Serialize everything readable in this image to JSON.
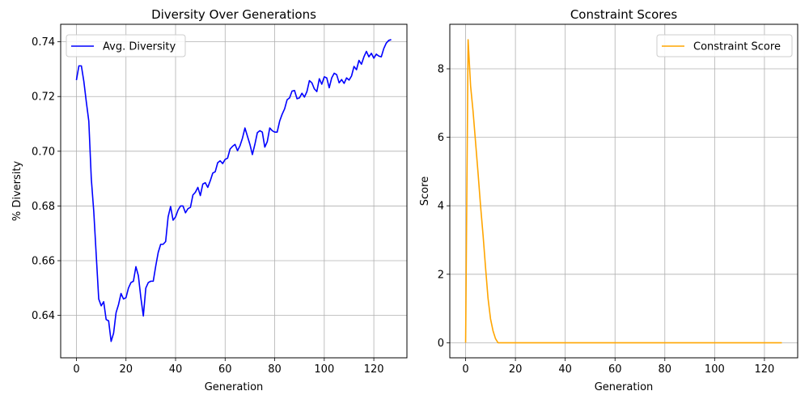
{
  "chart_data": [
    {
      "type": "line",
      "title": "Diversity Over Generations",
      "xlabel": "Generation",
      "ylabel": "% Diversity",
      "xlim": [
        -6.35,
        133.35
      ],
      "ylim": [
        0.6245,
        0.7464
      ],
      "xticks": [
        0,
        20,
        40,
        60,
        80,
        100,
        120
      ],
      "xtick_labels": [
        "0",
        "20",
        "40",
        "60",
        "80",
        "100",
        "120"
      ],
      "yticks": [
        0.64,
        0.66,
        0.68,
        0.7,
        0.72,
        0.74
      ],
      "ytick_labels": [
        "0.64",
        "0.66",
        "0.68",
        "0.70",
        "0.72",
        "0.74"
      ],
      "grid": true,
      "legend_position": "upper-left",
      "series": [
        {
          "name": "Avg. Diversity",
          "color": "#0000ff",
          "points": [
            [
              0,
              0.726
            ],
            [
              1,
              0.7312
            ],
            [
              2,
              0.7312
            ],
            [
              3,
              0.7255
            ],
            [
              4,
              0.718
            ],
            [
              5,
              0.711
            ],
            [
              6,
              0.69
            ],
            [
              7,
              0.678
            ],
            [
              8,
              0.662
            ],
            [
              9,
              0.646
            ],
            [
              10,
              0.6435
            ],
            [
              11,
              0.645
            ],
            [
              12,
              0.6385
            ],
            [
              13,
              0.638
            ],
            [
              14,
              0.6305
            ],
            [
              15,
              0.6335
            ],
            [
              16,
              0.641
            ],
            [
              17,
              0.644
            ],
            [
              18,
              0.648
            ],
            [
              19,
              0.646
            ],
            [
              20,
              0.6465
            ],
            [
              21,
              0.65
            ],
            [
              22,
              0.652
            ],
            [
              23,
              0.6525
            ],
            [
              24,
              0.6578
            ],
            [
              25,
              0.6545
            ],
            [
              26,
              0.6465
            ],
            [
              27,
              0.6398
            ],
            [
              28,
              0.65
            ],
            [
              29,
              0.652
            ],
            [
              30,
              0.6525
            ],
            [
              31,
              0.6525
            ],
            [
              32,
              0.658
            ],
            [
              33,
              0.663
            ],
            [
              34,
              0.666
            ],
            [
              35,
              0.666
            ],
            [
              36,
              0.667
            ],
            [
              37,
              0.676
            ],
            [
              38,
              0.6798
            ],
            [
              39,
              0.6748
            ],
            [
              40,
              0.676
            ],
            [
              41,
              0.6785
            ],
            [
              42,
              0.68
            ],
            [
              43,
              0.68
            ],
            [
              44,
              0.6775
            ],
            [
              45,
              0.679
            ],
            [
              46,
              0.6795
            ],
            [
              47,
              0.684
            ],
            [
              48,
              0.685
            ],
            [
              49,
              0.6868
            ],
            [
              50,
              0.6838
            ],
            [
              51,
              0.688
            ],
            [
              52,
              0.6885
            ],
            [
              53,
              0.6868
            ],
            [
              54,
              0.6892
            ],
            [
              55,
              0.692
            ],
            [
              56,
              0.6925
            ],
            [
              57,
              0.6958
            ],
            [
              58,
              0.6965
            ],
            [
              59,
              0.6955
            ],
            [
              60,
              0.697
            ],
            [
              61,
              0.6975
            ],
            [
              62,
              0.7008
            ],
            [
              63,
              0.7018
            ],
            [
              64,
              0.7025
            ],
            [
              65,
              0.7002
            ],
            [
              66,
              0.702
            ],
            [
              67,
              0.7048
            ],
            [
              68,
              0.7085
            ],
            [
              69,
              0.7055
            ],
            [
              70,
              0.7025
            ],
            [
              71,
              0.6988
            ],
            [
              72,
              0.7025
            ],
            [
              73,
              0.7068
            ],
            [
              74,
              0.7075
            ],
            [
              75,
              0.707
            ],
            [
              76,
              0.7015
            ],
            [
              77,
              0.7035
            ],
            [
              78,
              0.7085
            ],
            [
              79,
              0.7075
            ],
            [
              80,
              0.707
            ],
            [
              81,
              0.707
            ],
            [
              82,
              0.711
            ],
            [
              83,
              0.7135
            ],
            [
              84,
              0.7155
            ],
            [
              85,
              0.7188
            ],
            [
              86,
              0.7195
            ],
            [
              87,
              0.722
            ],
            [
              88,
              0.7222
            ],
            [
              89,
              0.7192
            ],
            [
              90,
              0.7195
            ],
            [
              91,
              0.7212
            ],
            [
              92,
              0.7198
            ],
            [
              93,
              0.7218
            ],
            [
              94,
              0.7258
            ],
            [
              95,
              0.725
            ],
            [
              96,
              0.7228
            ],
            [
              97,
              0.7218
            ],
            [
              98,
              0.7265
            ],
            [
              99,
              0.7245
            ],
            [
              100,
              0.7272
            ],
            [
              101,
              0.7268
            ],
            [
              102,
              0.7232
            ],
            [
              103,
              0.7268
            ],
            [
              104,
              0.7285
            ],
            [
              105,
              0.728
            ],
            [
              106,
              0.725
            ],
            [
              107,
              0.7262
            ],
            [
              108,
              0.7248
            ],
            [
              109,
              0.7268
            ],
            [
              110,
              0.726
            ],
            [
              111,
              0.7275
            ],
            [
              112,
              0.731
            ],
            [
              113,
              0.7298
            ],
            [
              114,
              0.7332
            ],
            [
              115,
              0.7318
            ],
            [
              116,
              0.7345
            ],
            [
              117,
              0.7365
            ],
            [
              118,
              0.7345
            ],
            [
              119,
              0.7358
            ],
            [
              120,
              0.734
            ],
            [
              121,
              0.7355
            ],
            [
              122,
              0.7348
            ],
            [
              123,
              0.7345
            ],
            [
              124,
              0.7375
            ],
            [
              125,
              0.7395
            ],
            [
              126,
              0.7405
            ],
            [
              127,
              0.7408
            ]
          ]
        }
      ]
    },
    {
      "type": "line",
      "title": "Constraint Scores",
      "xlabel": "Generation",
      "ylabel": "Score",
      "xlim": [
        -6.35,
        133.35
      ],
      "ylim": [
        -0.44,
        9.3
      ],
      "xticks": [
        0,
        20,
        40,
        60,
        80,
        100,
        120
      ],
      "xtick_labels": [
        "0",
        "20",
        "40",
        "60",
        "80",
        "100",
        "120"
      ],
      "yticks": [
        0,
        2,
        4,
        6,
        8
      ],
      "ytick_labels": [
        "0",
        "2",
        "4",
        "6",
        "8"
      ],
      "grid": true,
      "legend_position": "upper-right",
      "series": [
        {
          "name": "Constraint Score",
          "color": "#ffa500",
          "points": [
            [
              0,
              0
            ],
            [
              1,
              8.85
            ],
            [
              2,
              7.5
            ],
            [
              3,
              6.75
            ],
            [
              4,
              5.85
            ],
            [
              5,
              4.95
            ],
            [
              6,
              4.0
            ],
            [
              7,
              3.15
            ],
            [
              8,
              2.2
            ],
            [
              9,
              1.3
            ],
            [
              10,
              0.7
            ],
            [
              11,
              0.35
            ],
            [
              12,
              0.12
            ],
            [
              13,
              0
            ],
            [
              20,
              0
            ],
            [
              40,
              0
            ],
            [
              60,
              0
            ],
            [
              80,
              0
            ],
            [
              100,
              0
            ],
            [
              120,
              0
            ],
            [
              127,
              0
            ]
          ]
        }
      ]
    }
  ]
}
